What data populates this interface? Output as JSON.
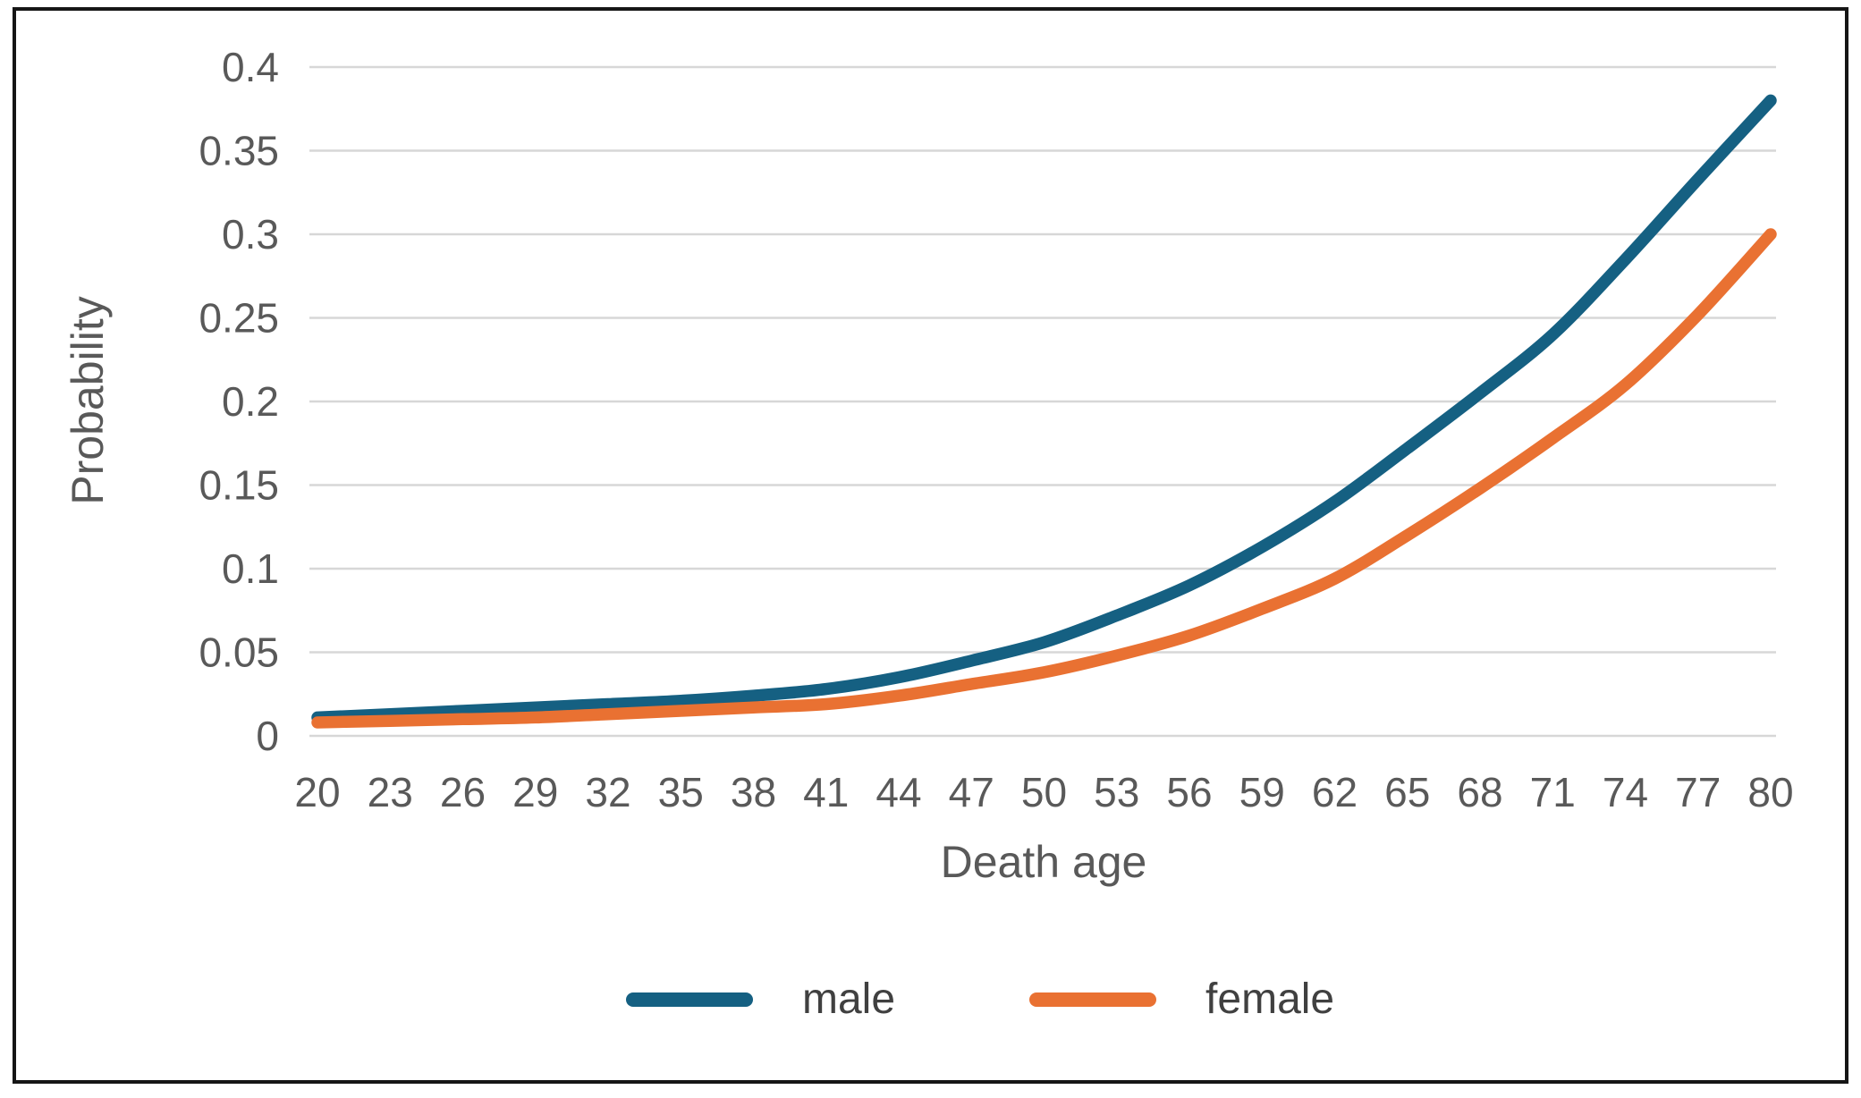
{
  "figure": {
    "background": "#ffffff",
    "border_color": "#161616",
    "gridline_color": "#d7d7d7",
    "tick_label_color": "#595959",
    "axis_title_color": "#595959",
    "legend_text_color": "#404040"
  },
  "chart_data": {
    "type": "line",
    "title": "",
    "xlabel": "Death age",
    "ylabel": "Probability",
    "x": [
      20,
      23,
      26,
      29,
      32,
      35,
      38,
      41,
      44,
      47,
      50,
      53,
      56,
      59,
      62,
      65,
      68,
      71,
      74,
      77,
      80
    ],
    "x_tick_labels": [
      "20",
      "23",
      "26",
      "29",
      "32",
      "35",
      "38",
      "41",
      "44",
      "47",
      "50",
      "53",
      "56",
      "59",
      "62",
      "65",
      "68",
      "71",
      "74",
      "77",
      "80"
    ],
    "y_ticks": [
      0,
      0.05,
      0.1,
      0.15,
      0.2,
      0.25,
      0.3,
      0.35,
      0.4
    ],
    "y_tick_labels": [
      "0",
      "0.05",
      "0.1",
      "0.15",
      "0.2",
      "0.25",
      "0.3",
      "0.35",
      "0.4"
    ],
    "ylim": [
      0,
      0.4
    ],
    "grid": "horizontal",
    "legend_position": "bottom",
    "series": [
      {
        "name": "male",
        "color": "#156082",
        "values": [
          0.011,
          0.013,
          0.015,
          0.017,
          0.019,
          0.021,
          0.024,
          0.028,
          0.035,
          0.045,
          0.056,
          0.072,
          0.09,
          0.113,
          0.14,
          0.172,
          0.205,
          0.24,
          0.285,
          0.333,
          0.38
        ]
      },
      {
        "name": "female",
        "color": "#E97132",
        "values": [
          0.008,
          0.009,
          0.01,
          0.011,
          0.013,
          0.015,
          0.017,
          0.019,
          0.024,
          0.031,
          0.038,
          0.048,
          0.06,
          0.076,
          0.094,
          0.12,
          0.148,
          0.178,
          0.21,
          0.252,
          0.3
        ]
      }
    ]
  }
}
